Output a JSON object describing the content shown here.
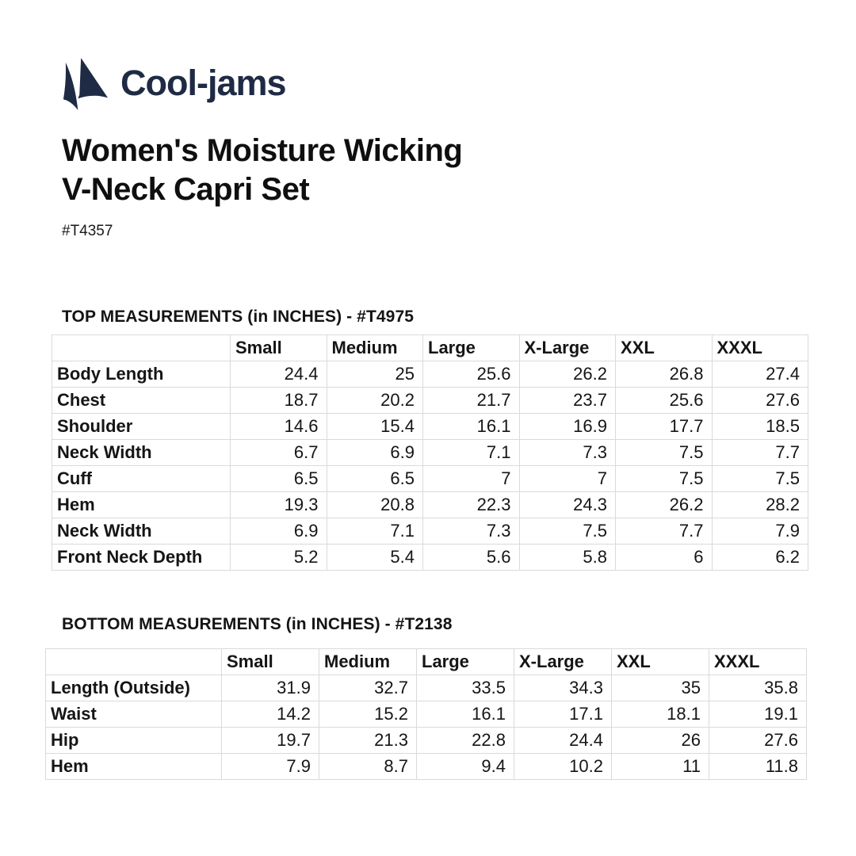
{
  "brand": {
    "name": "Cool-jams",
    "logo_icon": "sailboat-icon",
    "navy": "#1f2a44"
  },
  "product": {
    "title_line1": "Women's Moisture Wicking",
    "title_line2": "V-Neck Capri Set",
    "sku": "#T4357"
  },
  "colors": {
    "text_black": "#0f0f0f",
    "table_border": "#dadada",
    "background": "#ffffff"
  },
  "tables": [
    {
      "label": "TOP MEASUREMENTS (in INCHES) - #T4975",
      "columns": [
        "",
        "Small",
        "Medium",
        "Large",
        "X-Large",
        "XXL",
        "XXXL"
      ],
      "rows": [
        {
          "label": "Body Length",
          "values": [
            "24.4",
            "25",
            "25.6",
            "26.2",
            "26.8",
            "27.4"
          ]
        },
        {
          "label": "Chest",
          "values": [
            "18.7",
            "20.2",
            "21.7",
            "23.7",
            "25.6",
            "27.6"
          ]
        },
        {
          "label": "Shoulder",
          "values": [
            "14.6",
            "15.4",
            "16.1",
            "16.9",
            "17.7",
            "18.5"
          ]
        },
        {
          "label": "Neck Width",
          "values": [
            "6.7",
            "6.9",
            "7.1",
            "7.3",
            "7.5",
            "7.7"
          ]
        },
        {
          "label": "Cuff",
          "values": [
            "6.5",
            "6.5",
            "7",
            "7",
            "7.5",
            "7.5"
          ]
        },
        {
          "label": "Hem",
          "values": [
            "19.3",
            "20.8",
            "22.3",
            "24.3",
            "26.2",
            "28.2"
          ]
        },
        {
          "label": "Neck Width",
          "values": [
            "6.9",
            "7.1",
            "7.3",
            "7.5",
            "7.7",
            "7.9"
          ]
        },
        {
          "label": "Front Neck Depth",
          "values": [
            "5.2",
            "5.4",
            "5.6",
            "5.8",
            "6",
            "6.2"
          ]
        }
      ]
    },
    {
      "label": "BOTTOM MEASUREMENTS (in INCHES) - #T2138",
      "columns": [
        "",
        "Small",
        "Medium",
        "Large",
        "X-Large",
        "XXL",
        "XXXL"
      ],
      "rows": [
        {
          "label": "Length (Outside)",
          "values": [
            "31.9",
            "32.7",
            "33.5",
            "34.3",
            "35",
            "35.8"
          ]
        },
        {
          "label": "Waist",
          "values": [
            "14.2",
            "15.2",
            "16.1",
            "17.1",
            "18.1",
            "19.1"
          ]
        },
        {
          "label": "Hip",
          "values": [
            "19.7",
            "21.3",
            "22.8",
            "24.4",
            "26",
            "27.6"
          ]
        },
        {
          "label": "Hem",
          "values": [
            "7.9",
            "8.7",
            "9.4",
            "10.2",
            "11",
            "11.8"
          ]
        }
      ]
    }
  ]
}
